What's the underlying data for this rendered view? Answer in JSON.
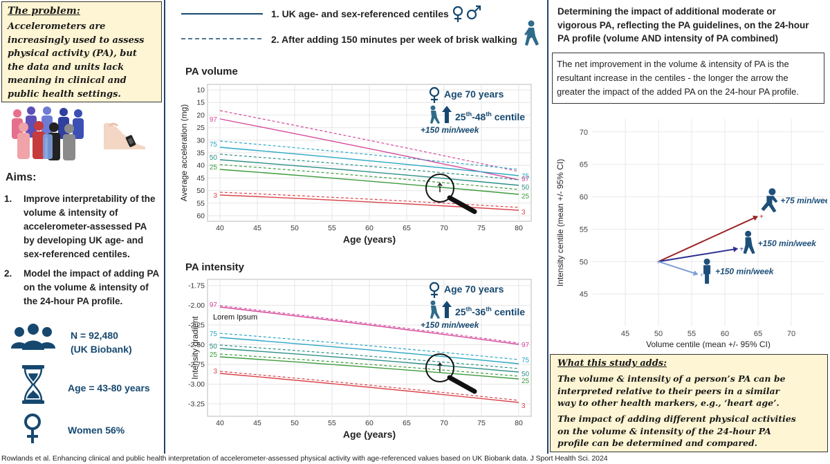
{
  "problem": {
    "heading": "The problem:",
    "lines": [
      "Accelerometers are",
      "increasingly used to assess",
      "physical activity (PA), but",
      "the data and units lack",
      "meaning in clinical and",
      "public health settings."
    ]
  },
  "aims": {
    "heading": "Aims:",
    "item1_num": "1.",
    "item1_lines": [
      "Improve interpretability of the",
      "volume & intensity of",
      "accelerometer-assessed PA",
      "by developing UK age- and",
      "sex-referenced centiles."
    ],
    "item2_num": "2.",
    "item2_lines": [
      "Model the impact of adding PA",
      "on the volume & intensity of",
      "the 24-hour PA profile."
    ]
  },
  "stats": {
    "n_lines": [
      "N = 92,480",
      "(UK Biobank)"
    ],
    "age": "Age =  43-80 years",
    "women": "Women 56%"
  },
  "legend": {
    "solid": "1.  UK age- and sex-referenced centiles",
    "dashed": "2.  After adding 150 minutes per week of brisk walking"
  },
  "volume_chart": {
    "title": "PA volume",
    "ylabel": "Average acceleration (mg)",
    "xlabel": "Age (years)",
    "xticks": [
      "40",
      "45",
      "50",
      "55",
      "60",
      "65",
      "70",
      "75",
      "80"
    ],
    "yticks": [
      "10",
      "15",
      "20",
      "25",
      "30",
      "35",
      "40",
      "45",
      "50",
      "55",
      "60"
    ],
    "age_label": "Age 70 years",
    "centile_prefix": "25",
    "centile_mid": "-48",
    "centile_suffix": " centile",
    "sup": "th",
    "added": "+150 min/week",
    "left_labels": [
      "97",
      "75",
      "50",
      "25",
      "3"
    ],
    "right_labels": [
      "97",
      "75",
      "50",
      "25",
      "3"
    ]
  },
  "intensity_chart": {
    "title": "PA intensity",
    "ylabel": "Intensity gradient",
    "xlabel": "Age (years)",
    "xticks": [
      "40",
      "45",
      "50",
      "55",
      "60",
      "65",
      "70",
      "75",
      "80"
    ],
    "yticks": [
      "-1.75",
      "-2.00",
      "-2.25",
      "-2.50",
      "-2.75",
      "-3.00",
      "-3.25"
    ],
    "lorem": "Lorem Ipsum",
    "age_label": "Age 70 years",
    "centile_prefix": "25",
    "centile_mid": "-36",
    "centile_suffix": " centile",
    "sup": "th",
    "added": "+150 min/week",
    "left_labels": [
      "97",
      "75",
      "50",
      "25",
      "3"
    ],
    "right_labels": [
      "97",
      "75",
      "50",
      "25",
      "3"
    ]
  },
  "right_panel": {
    "title_lines": [
      "Determining the impact of additional moderate or",
      "vigorous PA, reflecting the PA guidelines, on the 24-hour",
      "PA profile (volume AND intensity of PA combined)"
    ],
    "net_lines": [
      "The net improvement in the volume & intensity of PA is the",
      "resultant increase in the centiles  - the longer the arrow the",
      "greater the impact of the added PA on the 24-hour PA profile."
    ]
  },
  "scatter": {
    "xlabel": "Volume centile (mean +/- 95% CI)",
    "ylabel": "Intensity centile (mean +/- 95% CI)",
    "xticks": [
      "45",
      "50",
      "55",
      "60",
      "65",
      "70"
    ],
    "yticks": [
      "45",
      "50",
      "55",
      "60",
      "65",
      "70"
    ],
    "labels": [
      "+75 min/week",
      "+150 min/week",
      "+150 min/week"
    ]
  },
  "chart_data": {
    "type": "scatter",
    "xlabel": "Volume centile (mean +/- 95% CI)",
    "ylabel": "Intensity centile (mean +/- 95% CI)",
    "xlim": [
      40,
      75
    ],
    "ylim": [
      40,
      72
    ],
    "origin": {
      "x": 50,
      "y": 50
    },
    "series": [
      {
        "name": "+75 min/week",
        "color": "#9b2226",
        "x": 65,
        "y": 57
      },
      {
        "name": "+150 min/week",
        "color": "#2b2f8f",
        "x": 62,
        "y": 52
      },
      {
        "name": "+150 min/week",
        "color": "#7f9fd6",
        "x": 56,
        "y": 48
      }
    ]
  },
  "study_adds": {
    "heading": "What this study adds:",
    "p1_lines": [
      "The volume & intensity of a person’s PA can be",
      "interpreted relative to their peers in a similar",
      "way to other health markers, e.g., ‘heart age’."
    ],
    "p2_lines": [
      "The impact of adding different physical activities",
      "on the volume & intensity of the 24-hour PA",
      "profile can be determined and compared."
    ]
  },
  "citation": "Rowlands et al. Enhancing clinical and public health interpretation of accelerometer-assessed physical activity with age-referenced values based on UK Biobank data. J Sport Health Sci. 2024",
  "colors": {
    "navy": "#16486f",
    "magenta": "#d4479a",
    "cyan": "#2aa6c4",
    "teal": "#2d8f86",
    "green": "#3c9a3c",
    "red": "#d9434a",
    "yellow_box": "#fdf5d3"
  }
}
